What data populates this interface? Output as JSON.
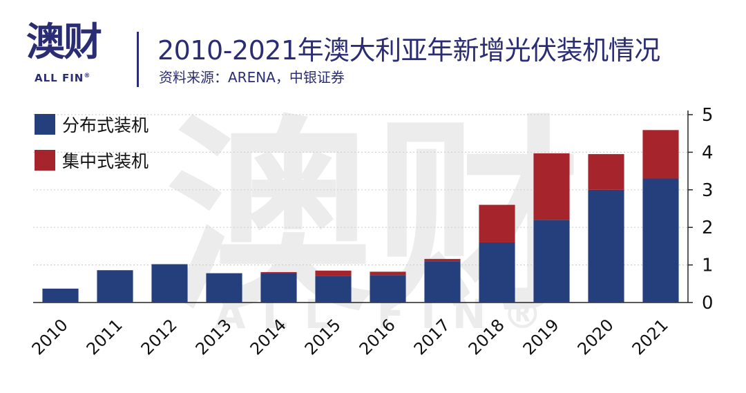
{
  "brand": {
    "logo_text": "澳财",
    "logo_subtext": "ALL FIN",
    "registered_mark": "®",
    "watermark_text": "澳财",
    "watermark_subtext": "ALL FIN®"
  },
  "header": {
    "title": "2010-2021年澳大利亚年新增光伏装机情况",
    "source": "资料来源：ARENA，中银证券"
  },
  "colors": {
    "brand": "#2a2d74",
    "distributed": "#243f7c",
    "centralized": "#a6242c",
    "grid": "#d0d0d0",
    "axis": "#222222",
    "watermark": "#ececec"
  },
  "chart_data": {
    "type": "bar",
    "stacked": true,
    "title": "2010-2021年澳大利亚年新增光伏装机情况",
    "xlabel": "",
    "ylabel": "",
    "ylim": [
      0,
      5
    ],
    "yticks": [
      "0",
      "1",
      "2",
      "3",
      "4",
      "5"
    ],
    "grid": true,
    "legend_position": "top-left",
    "y_axis_position": "right",
    "categories": [
      "2010",
      "2011",
      "2012",
      "2013",
      "2014",
      "2015",
      "2016",
      "2017",
      "2018",
      "2019",
      "2020",
      "2021"
    ],
    "series": [
      {
        "name": "分布式装机",
        "color": "#243f7c",
        "values": [
          0.37,
          0.86,
          1.02,
          0.78,
          0.78,
          0.7,
          0.73,
          1.1,
          1.6,
          2.2,
          3.0,
          3.3
        ]
      },
      {
        "name": "集中式装机",
        "color": "#a6242c",
        "values": [
          0.0,
          0.0,
          0.0,
          0.0,
          0.03,
          0.15,
          0.09,
          0.06,
          1.0,
          1.77,
          0.95,
          1.29
        ]
      }
    ]
  }
}
